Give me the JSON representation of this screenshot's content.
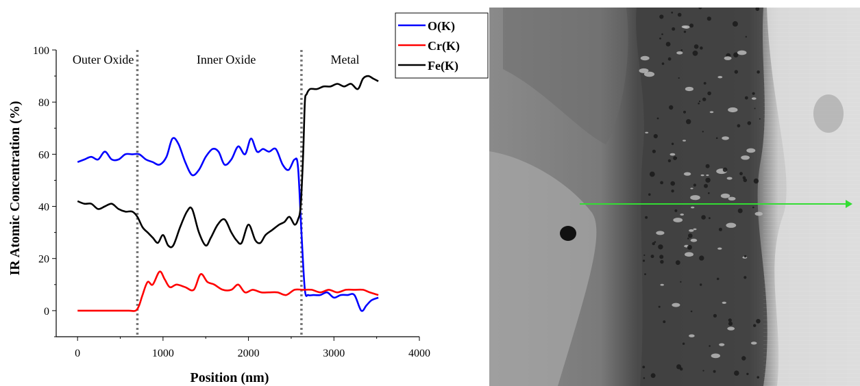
{
  "chart_data": {
    "type": "line",
    "xlabel": "Position (nm)",
    "ylabel": "IR Atomic Concentration (%)",
    "xlim": [
      -250,
      4000
    ],
    "ylim": [
      -10,
      100
    ],
    "xticks": [
      0,
      1000,
      2000,
      3000,
      4000
    ],
    "yticks": [
      0,
      20,
      40,
      60,
      80,
      100
    ],
    "grid": false,
    "legend": "top-right",
    "regions": [
      {
        "label": "Outer Oxide",
        "x_center": 300
      },
      {
        "label": "Inner Oxide",
        "x_center": 1740
      },
      {
        "label": "Metal",
        "x_center": 3130
      }
    ],
    "boundaries": [
      700,
      2620
    ],
    "series": [
      {
        "name": "O(K)",
        "color": "#0000ff",
        "x": [
          0,
          80,
          160,
          240,
          320,
          400,
          480,
          560,
          640,
          720,
          800,
          880,
          960,
          1040,
          1110,
          1180,
          1260,
          1340,
          1420,
          1500,
          1580,
          1650,
          1720,
          1800,
          1880,
          1960,
          2030,
          2100,
          2170,
          2240,
          2320,
          2400,
          2470,
          2540,
          2580,
          2620,
          2660,
          2700,
          2760,
          2840,
          2920,
          3000,
          3080,
          3160,
          3240,
          3320,
          3380,
          3440,
          3520
        ],
        "y": [
          57,
          58,
          59,
          58,
          61,
          58,
          58,
          60,
          60,
          60,
          58,
          57,
          56,
          59,
          66,
          64,
          57,
          52,
          54,
          59,
          62,
          61,
          56,
          58,
          63,
          60,
          66,
          61,
          62,
          61,
          62,
          56,
          54,
          58,
          55,
          30,
          8,
          6,
          6,
          6,
          7,
          5,
          6,
          6,
          6,
          0,
          2,
          4,
          5
        ]
      },
      {
        "name": "Cr(K)",
        "color": "#ff0000",
        "x": [
          0,
          200,
          400,
          600,
          680,
          720,
          760,
          820,
          880,
          960,
          1020,
          1080,
          1160,
          1260,
          1360,
          1440,
          1520,
          1600,
          1700,
          1800,
          1880,
          1960,
          2050,
          2150,
          2240,
          2340,
          2440,
          2540,
          2640,
          2740,
          2840,
          2940,
          3040,
          3140,
          3240,
          3340,
          3420,
          3520
        ],
        "y": [
          0,
          0,
          0,
          0,
          0,
          2,
          6,
          11,
          10,
          15,
          12,
          9,
          10,
          9,
          8,
          14,
          11,
          10,
          8,
          8,
          10,
          7,
          8,
          7,
          7,
          7,
          6,
          8,
          8,
          8,
          7,
          8,
          7,
          8,
          8,
          8,
          7,
          6
        ]
      },
      {
        "name": "Fe(K)",
        "color": "#000000",
        "x": [
          0,
          80,
          160,
          240,
          320,
          400,
          480,
          560,
          640,
          700,
          760,
          820,
          880,
          940,
          1000,
          1060,
          1120,
          1200,
          1280,
          1340,
          1420,
          1500,
          1560,
          1640,
          1720,
          1800,
          1860,
          1920,
          2000,
          2080,
          2140,
          2200,
          2280,
          2360,
          2420,
          2480,
          2540,
          2580,
          2610,
          2640,
          2660,
          2680,
          2720,
          2800,
          2880,
          2960,
          3040,
          3120,
          3200,
          3280,
          3340,
          3400,
          3460,
          3520
        ],
        "y": [
          42,
          41,
          41,
          39,
          40,
          41,
          39,
          38,
          38,
          36,
          32,
          30,
          28,
          26,
          29,
          25,
          25,
          32,
          38,
          39,
          30,
          25,
          28,
          33,
          35,
          30,
          27,
          26,
          33,
          27,
          26,
          29,
          31,
          33,
          34,
          36,
          33,
          35,
          40,
          60,
          80,
          83,
          85,
          85,
          86,
          86,
          87,
          86,
          87,
          85,
          89,
          90,
          89,
          88
        ]
      }
    ]
  },
  "micrograph": {
    "arrow_color": "#33dd33"
  }
}
